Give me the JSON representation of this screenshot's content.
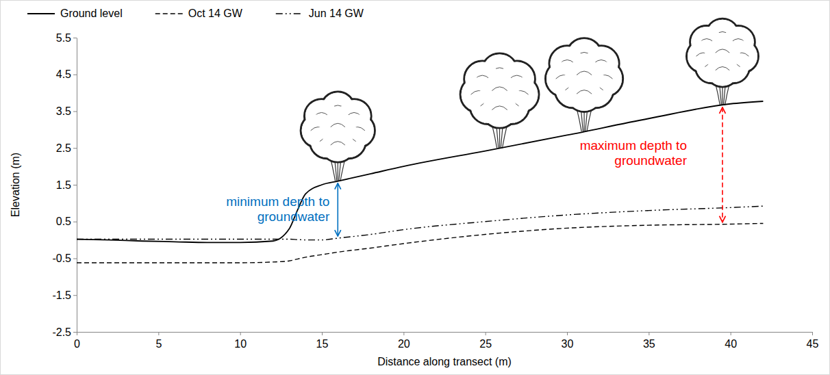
{
  "chart_data": {
    "type": "line",
    "xlabel": "Distance along transect (m)",
    "ylabel": "Elevation (m)",
    "x": [
      0,
      2,
      4,
      6,
      8,
      10,
      12,
      13,
      13.5,
      14,
      15,
      16,
      18,
      20,
      25,
      30,
      35,
      40,
      42
    ],
    "xlim": [
      0,
      45
    ],
    "xticks": [
      0,
      5,
      10,
      15,
      20,
      25,
      30,
      35,
      40,
      45
    ],
    "ylim": [
      -2.5,
      5.5
    ],
    "yticks": [
      -2.5,
      -1.5,
      -0.5,
      0.5,
      1.5,
      2.5,
      3.5,
      4.5,
      5.5
    ],
    "grid": false,
    "legend": "top",
    "series": [
      {
        "name": "Ground level",
        "color": "#000000",
        "line_style": "solid",
        "values": [
          0.02,
          0.0,
          -0.03,
          -0.05,
          -0.07,
          -0.07,
          -0.03,
          0.3,
          0.8,
          1.25,
          1.5,
          1.6,
          1.8,
          2.0,
          2.42,
          2.85,
          3.3,
          3.7,
          3.77
        ]
      },
      {
        "name": "Oct 14 GW",
        "color": "#000000",
        "line_style": "dashed",
        "values": [
          -0.62,
          -0.62,
          -0.62,
          -0.62,
          -0.62,
          -0.62,
          -0.6,
          -0.57,
          -0.52,
          -0.47,
          -0.4,
          -0.33,
          -0.22,
          -0.1,
          0.15,
          0.32,
          0.4,
          0.43,
          0.45
        ]
      },
      {
        "name": "Jun 14 GW",
        "color": "#000000",
        "line_style": "dashdot",
        "values": [
          0.02,
          0.02,
          0.02,
          0.02,
          0.02,
          0.02,
          0.02,
          0.02,
          0.01,
          0.0,
          0.0,
          0.05,
          0.15,
          0.28,
          0.5,
          0.68,
          0.8,
          0.88,
          0.92
        ]
      }
    ],
    "annotations": [
      {
        "text": [
          "minimum depth to",
          "groundwater"
        ],
        "color": "#0070c0",
        "line_style": "solid"
      },
      {
        "text": [
          "maximum depth to",
          "groundwater"
        ],
        "color": "#ff0000",
        "line_style": "dashed"
      }
    ]
  }
}
